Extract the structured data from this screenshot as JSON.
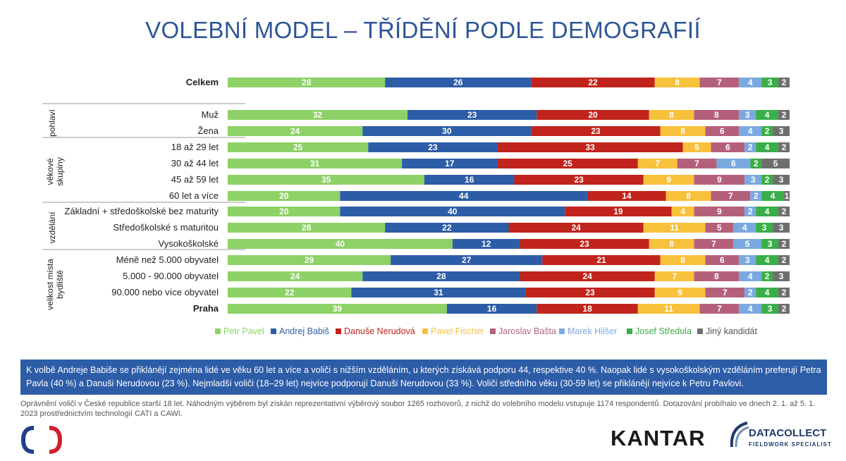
{
  "title": "VOLEBNÍ MODEL – TŘÍDĚNÍ PODLE DEMOGRAFIÍ",
  "chart_data": {
    "type": "bar",
    "stacked": true,
    "orientation": "horizontal",
    "categories": [
      "Celkem",
      "Muž",
      "Žena",
      "18 až 29 let",
      "30 až 44 let",
      "45 až 59 let",
      "60 let a více",
      "Základní + středoškolské bez maturity",
      "Středoškolské s maturitou",
      "Vysokoškolské",
      "Méně než 5.000 obyvatel",
      "5.000 - 90.000 obyvatel",
      "90.000 nebo více obyvatel",
      "Praha"
    ],
    "bold_categories": [
      "Celkem",
      "Praha"
    ],
    "groups": [
      {
        "label": "pohlaví",
        "rows": [
          1,
          2
        ]
      },
      {
        "label": "věkové skupiny",
        "rows": [
          3,
          6
        ]
      },
      {
        "label": "vzdělání",
        "rows": [
          7,
          9
        ]
      },
      {
        "label": "velikost místa bydliště",
        "rows": [
          10,
          13
        ]
      }
    ],
    "series": [
      {
        "name": "Petr Pavel",
        "color": "#8dd167",
        "values": [
          28,
          32,
          24,
          25,
          31,
          35,
          20,
          20,
          28,
          40,
          29,
          24,
          22,
          39
        ]
      },
      {
        "name": "Andrej Babiš",
        "color": "#2e5da8",
        "values": [
          26,
          23,
          30,
          23,
          17,
          16,
          44,
          40,
          22,
          12,
          27,
          28,
          31,
          16
        ]
      },
      {
        "name": "Danuše Nerudová",
        "color": "#c0241c",
        "values": [
          22,
          20,
          23,
          33,
          25,
          23,
          14,
          19,
          24,
          23,
          21,
          24,
          23,
          18
        ]
      },
      {
        "name": "Pavel Fischer",
        "color": "#f8c13c",
        "values": [
          8,
          8,
          8,
          5,
          7,
          9,
          8,
          4,
          11,
          8,
          8,
          7,
          9,
          11
        ]
      },
      {
        "name": "Jaroslav Bašta",
        "color": "#b5607a",
        "values": [
          7,
          8,
          6,
          6,
          7,
          9,
          7,
          9,
          5,
          7,
          6,
          8,
          7,
          7
        ]
      },
      {
        "name": "Marek Hilšer",
        "color": "#7aa9e0",
        "values": [
          4,
          3,
          4,
          2,
          6,
          3,
          2,
          2,
          4,
          5,
          3,
          4,
          2,
          4
        ]
      },
      {
        "name": "Josef Středula",
        "color": "#3aae48",
        "values": [
          3,
          4,
          2,
          4,
          2,
          2,
          4,
          4,
          3,
          3,
          4,
          2,
          4,
          3
        ]
      },
      {
        "name": "Jiný kandidát",
        "color": "#6e6e6e",
        "values": [
          2,
          2,
          3,
          2,
          5,
          3,
          1,
          2,
          3,
          2,
          2,
          3,
          2,
          2
        ]
      }
    ],
    "xlim": [
      0,
      100
    ]
  },
  "summary": "K volbě Andreje Babiše se přiklánějí zejména lidé ve věku 60 let a více a voliči s nižším vzděláním, u kterých získává podporu 44, respektive 40 %. Naopak lidé s vysokoškolským vzděláním preferují Petra Pavla (40 %) a Danuši Nerudovou (23 %). Nejmladší voliči (18–29 let) nejvíce podporují Danuši Nerudovou (33 %). Voliči středního věku (30-59 let) se přiklánějí nejvíce k Petru Pavlovi.",
  "footnote": "Oprávnění voliči v České republice starší 18 let. Náhodným výběrem byl získán reprezentativní výběrový soubor 1265 rozhovorů, z nichž do volebního modelu vstupuje 1174 respondentů. Dotazování probíhalo ve dnech 2. 1. až 5. 1. 2023 prostřednictvím technologií CATI a CAWI.",
  "logos": {
    "left_icon": "ceska-televize-logo-icon",
    "kantar": "KANTAR",
    "datacollect_name": "DATACOLLECT",
    "datacollect_sub": "FIELDWORK SPECIALIST"
  }
}
